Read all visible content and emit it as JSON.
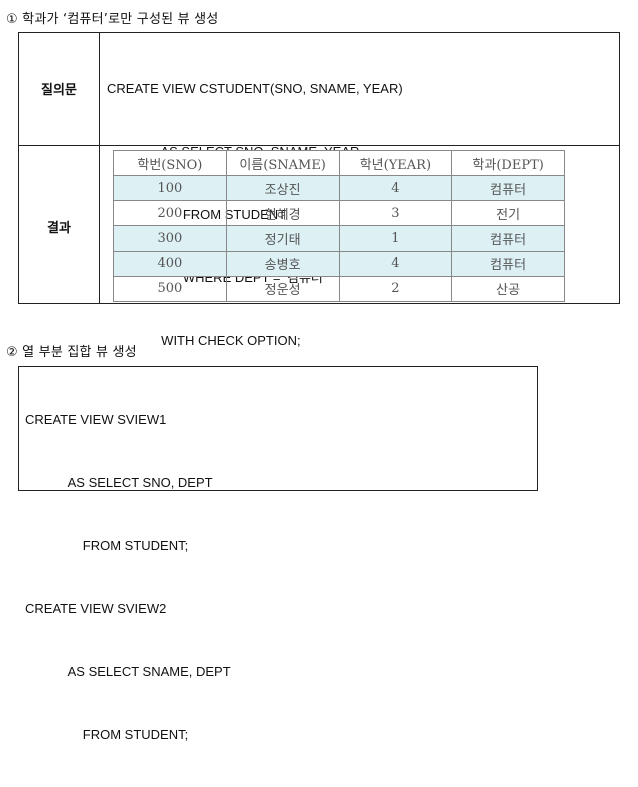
{
  "section1": {
    "heading": "① 학과가 ‘컴퓨터’로만 구성된 뷰 생성",
    "query_label": "질의문",
    "result_label": "결과",
    "query_lines": [
      "CREATE VIEW CSTUDENT(SNO, SNAME, YEAR)",
      "               AS SELECT SNO, SNAME, YEAR",
      "                     FROM STUDENT",
      "                     WHERE DEPT = ‘컴퓨터’",
      "               WITH CHECK OPTION;"
    ],
    "table": {
      "headers": [
        "학번(SNO)",
        "이름(SNAME)",
        "학년(YEAR)",
        "학과(DEPT)"
      ],
      "rows": [
        [
          "100",
          "조상진",
          "4",
          "컴퓨터"
        ],
        [
          "200",
          "현혜경",
          "3",
          "전기"
        ],
        [
          "300",
          "정기태",
          "1",
          "컴퓨터"
        ],
        [
          "400",
          "송병호",
          "4",
          "컴퓨터"
        ],
        [
          "500",
          "정운성",
          "2",
          "산공"
        ]
      ],
      "shade_color": "#ddf1f5"
    }
  },
  "section2": {
    "heading": "② 열 부분 집합 뷰 생성",
    "code_lines": [
      "CREATE VIEW SVIEW1",
      "            AS SELECT SNO, DEPT",
      "                FROM STUDENT;",
      "CREATE VIEW SVIEW2",
      "            AS SELECT SNAME, DEPT",
      "                FROM STUDENT;"
    ]
  }
}
